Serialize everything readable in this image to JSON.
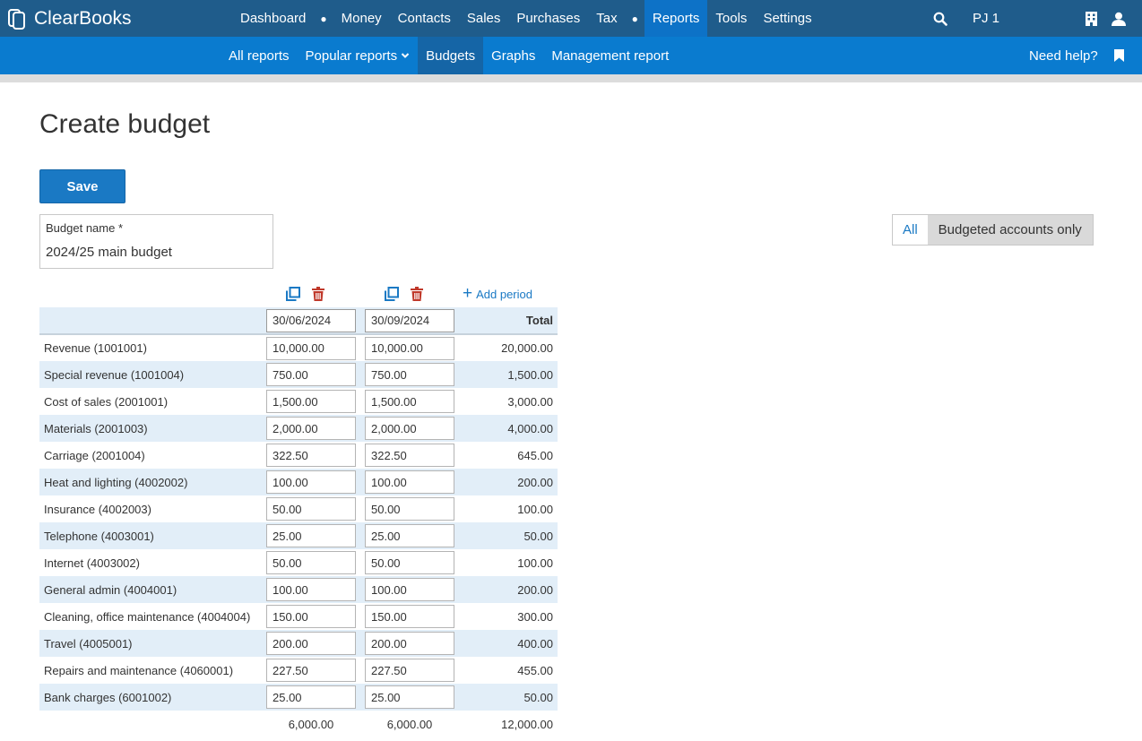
{
  "app": {
    "brand": "ClearBooks"
  },
  "topnav": {
    "items": [
      "Dashboard",
      "Money",
      "Contacts",
      "Sales",
      "Purchases",
      "Tax",
      "Reports",
      "Tools",
      "Settings"
    ],
    "active": "Reports",
    "user": "PJ 1"
  },
  "subnav": {
    "items": [
      "All reports",
      "Popular reports",
      "Budgets",
      "Graphs",
      "Management report"
    ],
    "active": "Budgets",
    "help": "Need help?"
  },
  "page": {
    "title": "Create budget",
    "save_label": "Save",
    "budget_name_label": "Budget name *",
    "budget_name_value": "2024/25 main budget",
    "filter_all": "All",
    "filter_budgeted": "Budgeted accounts only",
    "add_period": "Add period"
  },
  "table": {
    "periods": [
      "30/06/2024",
      "30/09/2024"
    ],
    "total_header": "Total",
    "rows": [
      {
        "account": "Revenue (1001001)",
        "p1": "10,000.00",
        "p2": "10,000.00",
        "total": "20,000.00"
      },
      {
        "account": "Special revenue (1001004)",
        "p1": "750.00",
        "p2": "750.00",
        "total": "1,500.00"
      },
      {
        "account": "Cost of sales (2001001)",
        "p1": "1,500.00",
        "p2": "1,500.00",
        "total": "3,000.00"
      },
      {
        "account": "Materials (2001003)",
        "p1": "2,000.00",
        "p2": "2,000.00",
        "total": "4,000.00"
      },
      {
        "account": "Carriage (2001004)",
        "p1": "322.50",
        "p2": "322.50",
        "total": "645.00"
      },
      {
        "account": "Heat and lighting (4002002)",
        "p1": "100.00",
        "p2": "100.00",
        "total": "200.00"
      },
      {
        "account": "Insurance (4002003)",
        "p1": "50.00",
        "p2": "50.00",
        "total": "100.00"
      },
      {
        "account": "Telephone (4003001)",
        "p1": "25.00",
        "p2": "25.00",
        "total": "50.00"
      },
      {
        "account": "Internet (4003002)",
        "p1": "50.00",
        "p2": "50.00",
        "total": "100.00"
      },
      {
        "account": "General admin (4004001)",
        "p1": "100.00",
        "p2": "100.00",
        "total": "200.00"
      },
      {
        "account": "Cleaning, office maintenance (4004004)",
        "p1": "150.00",
        "p2": "150.00",
        "total": "300.00"
      },
      {
        "account": "Travel (4005001)",
        "p1": "200.00",
        "p2": "200.00",
        "total": "400.00"
      },
      {
        "account": "Repairs and maintenance (4060001)",
        "p1": "227.50",
        "p2": "227.50",
        "total": "455.00"
      },
      {
        "account": "Bank charges (6001002)",
        "p1": "25.00",
        "p2": "25.00",
        "total": "50.00"
      }
    ],
    "footer": {
      "p1": "6,000.00",
      "p2": "6,000.00",
      "total": "12,000.00"
    }
  },
  "colors": {
    "topbar": "#1f5c8b",
    "subbar": "#0a7bcf",
    "active_tab": "#0d72c7",
    "accent": "#1a79c4",
    "delete": "#c0392b",
    "row_stripe": "#e2eef8"
  },
  "icons": {
    "logo": "clearbooks-logo-icon",
    "search": "search-icon",
    "org": "building-icon",
    "profile": "user-icon",
    "bookmark": "bookmark-icon",
    "copy": "copy-column-icon",
    "delete": "trash-icon",
    "add": "plus-icon",
    "caret": "chevron-down-icon"
  }
}
